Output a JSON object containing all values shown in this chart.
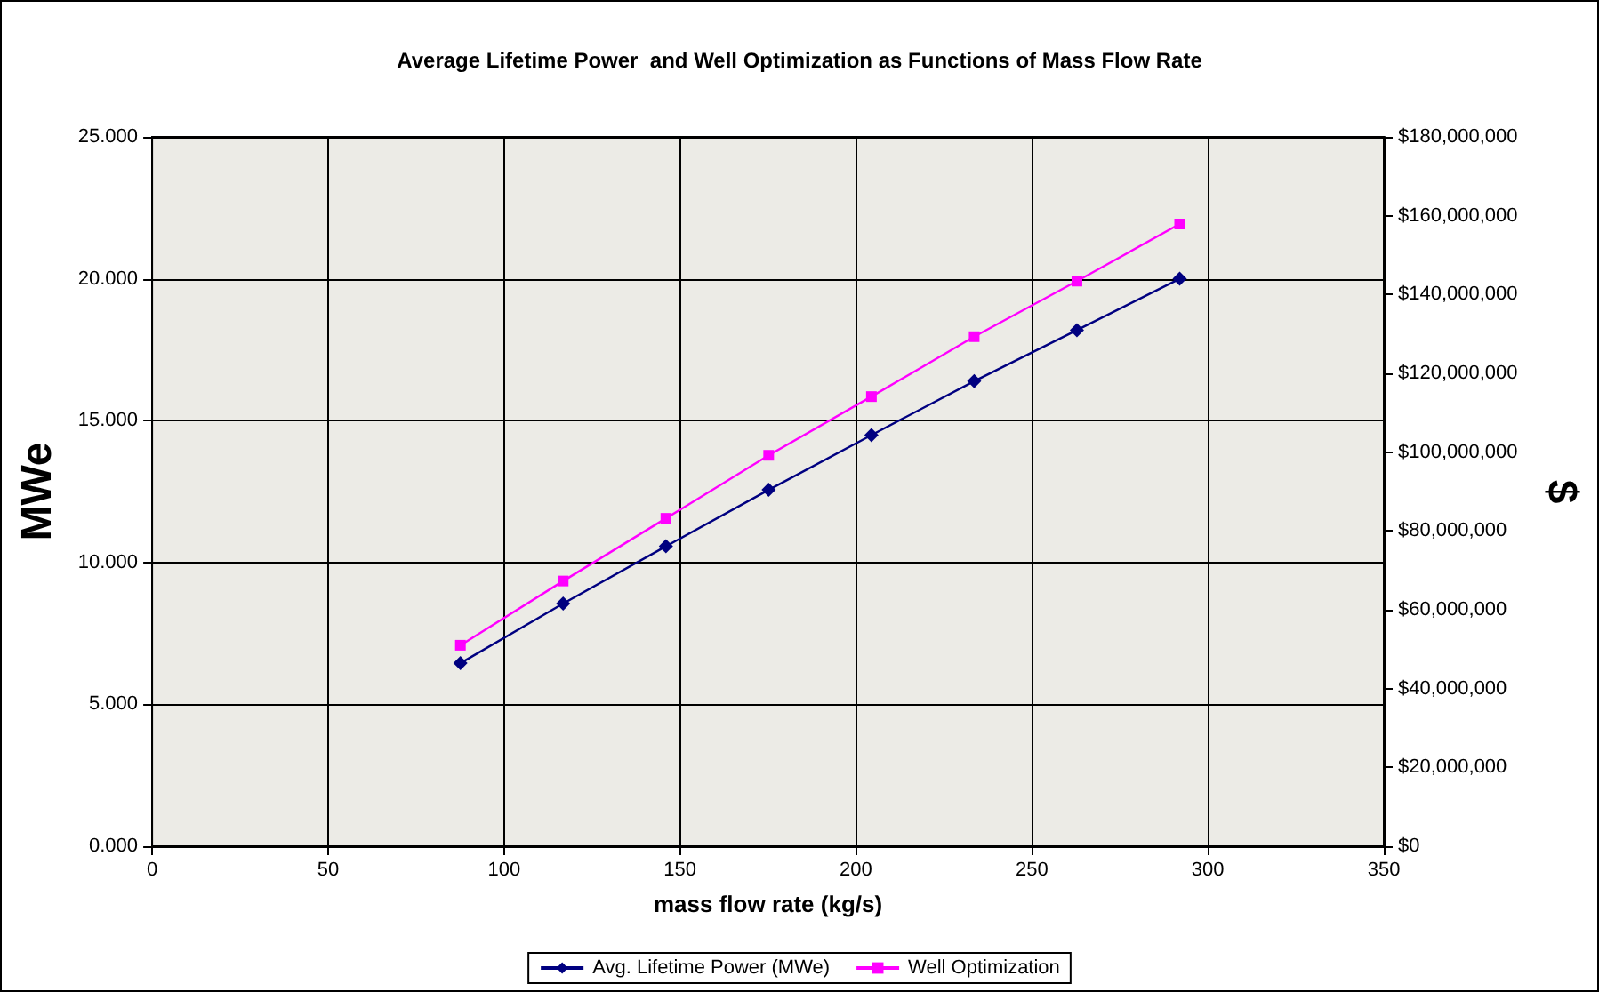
{
  "chart_data": {
    "type": "line",
    "title": "Average Lifetime Power  and Well Optimization as Functions of Mass Flow Rate",
    "xlabel": "mass flow rate (kg/s)",
    "ylabel": "MWe",
    "y2label": "$",
    "x": [
      87.6,
      116.8,
      146,
      175.2,
      204.4,
      233.6,
      262.8,
      292
    ],
    "series": [
      {
        "name": "Avg. Lifetime Power (MWe)",
        "color": "#000080",
        "marker": "diamond",
        "values": [
          6.45,
          8.55,
          10.57,
          12.56,
          14.49,
          16.39,
          18.19,
          20.0
        ]
      },
      {
        "name": "Well Optimization",
        "color": "#ff00ff",
        "marker": "square",
        "axis": "y2",
        "values": [
          51000000,
          67300000,
          83200000,
          99200000,
          114100000,
          129300000,
          143400000,
          157900000
        ]
      }
    ],
    "xlim": [
      0,
      350
    ],
    "xticks": [
      0,
      50,
      100,
      150,
      200,
      250,
      300,
      350
    ],
    "ylim": [
      0,
      25
    ],
    "yticks": [
      {
        "value": 0,
        "label": "0.000"
      },
      {
        "value": 5,
        "label": "5.000"
      },
      {
        "value": 10,
        "label": "10.000"
      },
      {
        "value": 15,
        "label": "15.000"
      },
      {
        "value": 20,
        "label": "20.000"
      },
      {
        "value": 25,
        "label": "25.000"
      }
    ],
    "y2lim": [
      0,
      180000000
    ],
    "y2ticks": [
      {
        "value": 0,
        "label": "$0"
      },
      {
        "value": 20000000,
        "label": "$20,000,000"
      },
      {
        "value": 40000000,
        "label": "$40,000,000"
      },
      {
        "value": 60000000,
        "label": "$60,000,000"
      },
      {
        "value": 80000000,
        "label": "$80,000,000"
      },
      {
        "value": 100000000,
        "label": "$100,000,000"
      },
      {
        "value": 120000000,
        "label": "$120,000,000"
      },
      {
        "value": 140000000,
        "label": "$140,000,000"
      },
      {
        "value": 160000000,
        "label": "$160,000,000"
      },
      {
        "value": 180000000,
        "label": "$180,000,000"
      }
    ],
    "grid": true,
    "legend": "bottom",
    "line_style": "solid"
  }
}
